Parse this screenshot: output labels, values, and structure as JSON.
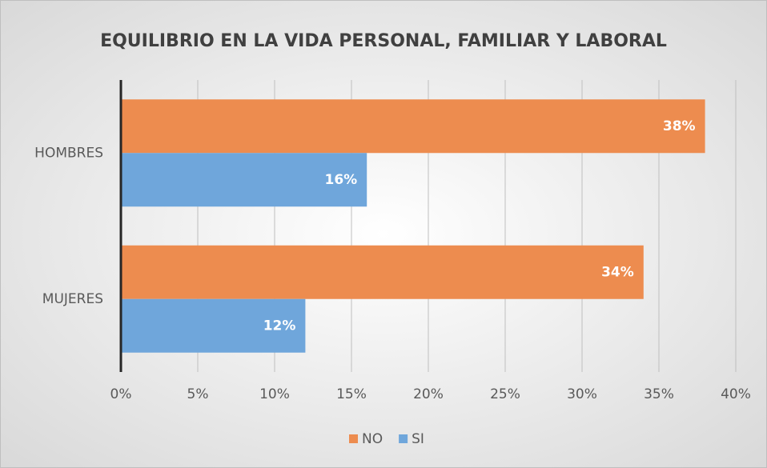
{
  "chart_data": {
    "type": "bar",
    "orientation": "horizontal",
    "title": "EQUILIBRIO EN LA VIDA PERSONAL, FAMILIAR Y LABORAL",
    "categories": [
      "HOMBRES",
      "MUJERES"
    ],
    "series": [
      {
        "name": "NO",
        "color": "#ed8c4f",
        "values": [
          38,
          34
        ],
        "value_labels": [
          "38%",
          "34%"
        ]
      },
      {
        "name": "SI",
        "color": "#6fa6db",
        "values": [
          16,
          12
        ],
        "value_labels": [
          "16%",
          "12%"
        ]
      }
    ],
    "xlim": [
      0,
      40
    ],
    "xticks": [
      {
        "value": 0,
        "label": "0%"
      },
      {
        "value": 5,
        "label": "5%"
      },
      {
        "value": 10,
        "label": "10%"
      },
      {
        "value": 15,
        "label": "15%"
      },
      {
        "value": 20,
        "label": "20%"
      },
      {
        "value": 25,
        "label": "25%"
      },
      {
        "value": 30,
        "label": "30%"
      },
      {
        "value": 35,
        "label": "35%"
      },
      {
        "value": 40,
        "label": "40%"
      }
    ],
    "grid": true,
    "legend": "bottom"
  }
}
